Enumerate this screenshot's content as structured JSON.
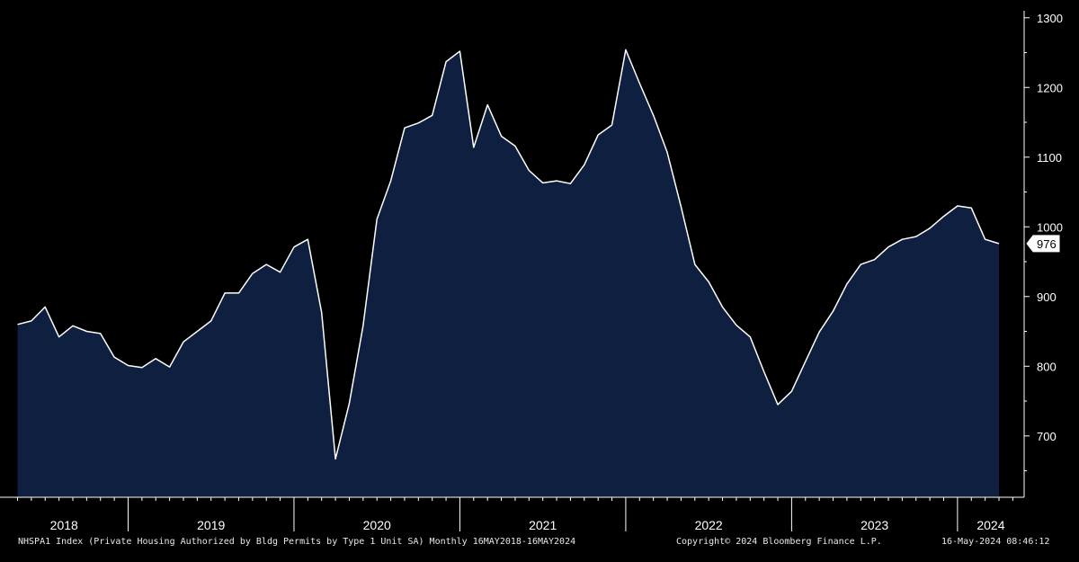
{
  "chart_data": {
    "type": "area",
    "title": "",
    "xlabel": "",
    "ylabel": "",
    "series": [
      {
        "x": [
          "2018-05",
          "2018-06",
          "2018-07",
          "2018-08",
          "2018-09",
          "2018-10",
          "2018-11",
          "2018-12",
          "2019-01",
          "2019-02",
          "2019-03",
          "2019-04",
          "2019-05",
          "2019-06",
          "2019-07",
          "2019-08",
          "2019-09",
          "2019-10",
          "2019-11",
          "2019-12",
          "2020-01",
          "2020-02",
          "2020-03",
          "2020-04",
          "2020-05",
          "2020-06",
          "2020-07",
          "2020-08",
          "2020-09",
          "2020-10",
          "2020-11",
          "2020-12",
          "2021-01",
          "2021-02",
          "2021-03",
          "2021-04",
          "2021-05",
          "2021-06",
          "2021-07",
          "2021-08",
          "2021-09",
          "2021-10",
          "2021-11",
          "2021-12",
          "2022-01",
          "2022-02",
          "2022-03",
          "2022-04",
          "2022-05",
          "2022-06",
          "2022-07",
          "2022-08",
          "2022-09",
          "2022-10",
          "2022-11",
          "2022-12",
          "2023-01",
          "2023-02",
          "2023-03",
          "2023-04",
          "2023-05",
          "2023-06",
          "2023-07",
          "2023-08",
          "2023-09",
          "2023-10",
          "2023-11",
          "2023-12",
          "2024-01",
          "2024-02",
          "2024-03",
          "2024-04"
        ],
        "values": [
          860,
          865,
          885,
          842,
          858,
          850,
          847,
          813,
          801,
          798,
          811,
          799,
          835,
          850,
          865,
          905,
          905,
          933,
          946,
          935,
          971,
          982,
          877,
          667,
          747,
          858,
          1011,
          1066,
          1142,
          1149,
          1160,
          1237,
          1252,
          1114,
          1175,
          1130,
          1116,
          1081,
          1063,
          1066,
          1062,
          1089,
          1132,
          1146,
          1254,
          1206,
          1160,
          1107,
          1029,
          946,
          921,
          885,
          859,
          842,
          792,
          745,
          764,
          807,
          849,
          879,
          918,
          946,
          953,
          971,
          982,
          986,
          998,
          1015,
          1030,
          1027,
          982,
          976
        ]
      }
    ],
    "ylim": [
      612,
      1310
    ],
    "y_ticks": [
      700,
      800,
      900,
      1000,
      1100,
      1200,
      1300
    ],
    "x_ticks": [
      "2018",
      "2019",
      "2020",
      "2021",
      "2022",
      "2023",
      "2024"
    ],
    "last_value_label": "976",
    "axis_side": "right",
    "grid": false,
    "colors": {
      "fill": "#0e1f3f",
      "line": "#ffffff",
      "background": "#000000"
    }
  },
  "footer": {
    "description": "NHSPA1 Index (Private Housing Authorized by Bldg Permits by Type 1 Unit SA)  Monthly 16MAY2018-16MAY2024",
    "copyright": "Copyright© 2024 Bloomberg Finance L.P.",
    "timestamp": "16-May-2024 08:46:12"
  }
}
